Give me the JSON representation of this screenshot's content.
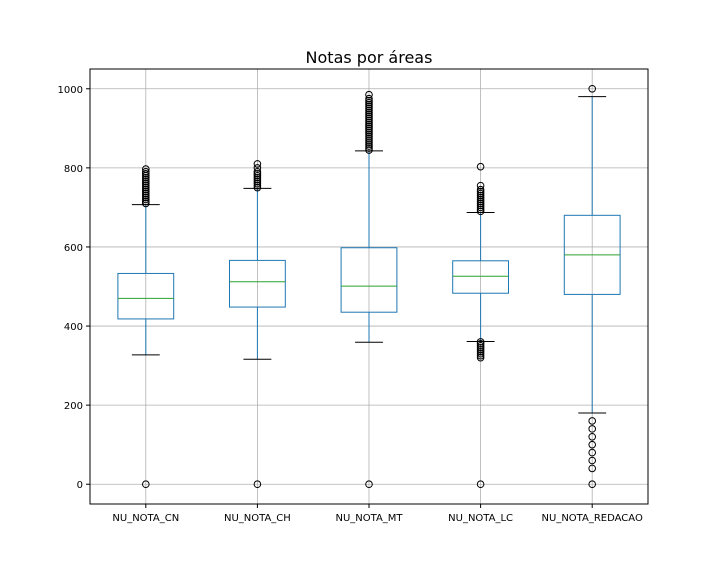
{
  "chart_data": {
    "type": "box",
    "title": "Notas por áreas",
    "xlabel": "",
    "ylabel": "",
    "ylim": [
      -50,
      1050
    ],
    "yticks": [
      0,
      200,
      400,
      600,
      800,
      1000
    ],
    "grid": true,
    "categories": [
      "NU_NOTA_CN",
      "NU_NOTA_CH",
      "NU_NOTA_MT",
      "NU_NOTA_LC",
      "NU_NOTA_REDACAO"
    ],
    "boxes": [
      {
        "name": "NU_NOTA_CN",
        "whisker_low": 327,
        "q1": 418,
        "median": 470,
        "q3": 533,
        "whisker_high": 707,
        "outliers": [
          0,
          710,
          715,
          720,
          725,
          730,
          735,
          740,
          745,
          750,
          755,
          760,
          765,
          770,
          775,
          780,
          785,
          790,
          797
        ]
      },
      {
        "name": "NU_NOTA_CH",
        "whisker_low": 316,
        "q1": 448,
        "median": 512,
        "q3": 566,
        "whisker_high": 748,
        "outliers": [
          0,
          750,
          755,
          760,
          765,
          770,
          775,
          780,
          785,
          790,
          800,
          810
        ]
      },
      {
        "name": "NU_NOTA_MT",
        "whisker_low": 359,
        "q1": 435,
        "median": 501,
        "q3": 598,
        "whisker_high": 843,
        "outliers": [
          0,
          845,
          850,
          855,
          860,
          865,
          870,
          875,
          880,
          885,
          890,
          895,
          900,
          905,
          910,
          915,
          920,
          925,
          930,
          935,
          940,
          945,
          950,
          955,
          960,
          965,
          970,
          975,
          985
        ]
      },
      {
        "name": "NU_NOTA_LC",
        "whisker_low": 361,
        "q1": 483,
        "median": 526,
        "q3": 565,
        "whisker_high": 687,
        "outliers": [
          0,
          320,
          325,
          330,
          335,
          340,
          345,
          350,
          355,
          360,
          690,
          695,
          700,
          705,
          710,
          715,
          720,
          725,
          730,
          735,
          740,
          745,
          755,
          803
        ]
      },
      {
        "name": "NU_NOTA_REDACAO",
        "whisker_low": 180,
        "q1": 480,
        "median": 580,
        "q3": 680,
        "whisker_high": 980,
        "outliers": [
          0,
          40,
          60,
          80,
          100,
          120,
          140,
          160,
          1000
        ]
      }
    ],
    "colors": {
      "box": "#1f77b4",
      "median": "#2ca02c",
      "whisker": "#1f77b4",
      "cap": "#000000",
      "flier": "#000000",
      "grid": "#b0b0b0",
      "axes": "#000000"
    }
  }
}
